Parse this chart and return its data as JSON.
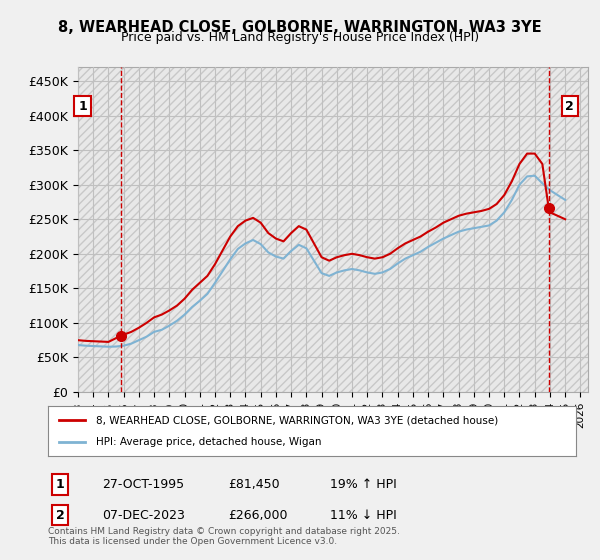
{
  "title": "8, WEARHEAD CLOSE, GOLBORNE, WARRINGTON, WA3 3YE",
  "subtitle": "Price paid vs. HM Land Registry's House Price Index (HPI)",
  "ylabel_ticks": [
    "£0",
    "£50K",
    "£100K",
    "£150K",
    "£200K",
    "£250K",
    "£300K",
    "£350K",
    "£400K",
    "£450K"
  ],
  "ytick_vals": [
    0,
    50000,
    100000,
    150000,
    200000,
    250000,
    300000,
    350000,
    400000,
    450000
  ],
  "ylim": [
    0,
    470000
  ],
  "xlim_start": 1993.0,
  "xlim_end": 2026.5,
  "background_color": "#f0f0f0",
  "plot_bg_color": "#ffffff",
  "hatch_color": "#d0d0d0",
  "grid_color": "#c0c0c0",
  "red_line_color": "#cc0000",
  "blue_line_color": "#7fb3d3",
  "dashed_red_color": "#cc0000",
  "point1_x": 1995.82,
  "point1_y": 81450,
  "point2_x": 2023.92,
  "point2_y": 266000,
  "annotation1": "1",
  "annotation2": "2",
  "legend_label1": "8, WEARHEAD CLOSE, GOLBORNE, WARRINGTON, WA3 3YE (detached house)",
  "legend_label2": "HPI: Average price, detached house, Wigan",
  "table_row1": [
    "1",
    "27-OCT-1995",
    "£81,450",
    "19% ↑ HPI"
  ],
  "table_row2": [
    "2",
    "07-DEC-2023",
    "£266,000",
    "11% ↓ HPI"
  ],
  "footer": "Contains HM Land Registry data © Crown copyright and database right 2025.\nThis data is licensed under the Open Government Licence v3.0.",
  "red_line_x": [
    1993.0,
    1993.5,
    1994.0,
    1994.5,
    1995.0,
    1995.82,
    1996.0,
    1996.5,
    1997.0,
    1997.5,
    1998.0,
    1998.5,
    1999.0,
    1999.5,
    2000.0,
    2000.5,
    2001.0,
    2001.5,
    2002.0,
    2002.5,
    2003.0,
    2003.5,
    2004.0,
    2004.5,
    2005.0,
    2005.5,
    2006.0,
    2006.5,
    2007.0,
    2007.5,
    2008.0,
    2008.5,
    2009.0,
    2009.5,
    2010.0,
    2010.5,
    2011.0,
    2011.5,
    2012.0,
    2012.5,
    2013.0,
    2013.5,
    2014.0,
    2014.5,
    2015.0,
    2015.5,
    2016.0,
    2016.5,
    2017.0,
    2017.5,
    2018.0,
    2018.5,
    2019.0,
    2019.5,
    2020.0,
    2020.5,
    2021.0,
    2021.5,
    2022.0,
    2022.5,
    2023.0,
    2023.5,
    2023.92,
    2024.0,
    2024.5,
    2025.0
  ],
  "red_line_y": [
    75000,
    74000,
    73500,
    73000,
    72500,
    81450,
    83000,
    87000,
    93000,
    100000,
    108000,
    112000,
    118000,
    125000,
    135000,
    148000,
    158000,
    168000,
    185000,
    205000,
    225000,
    240000,
    248000,
    252000,
    245000,
    230000,
    222000,
    218000,
    230000,
    240000,
    235000,
    215000,
    195000,
    190000,
    195000,
    198000,
    200000,
    198000,
    195000,
    193000,
    195000,
    200000,
    208000,
    215000,
    220000,
    225000,
    232000,
    238000,
    245000,
    250000,
    255000,
    258000,
    260000,
    262000,
    265000,
    272000,
    285000,
    305000,
    330000,
    345000,
    345000,
    330000,
    266000,
    260000,
    255000,
    250000
  ],
  "blue_line_x": [
    1993.0,
    1993.5,
    1994.0,
    1994.5,
    1995.0,
    1995.5,
    1996.0,
    1996.5,
    1997.0,
    1997.5,
    1998.0,
    1998.5,
    1999.0,
    1999.5,
    2000.0,
    2000.5,
    2001.0,
    2001.5,
    2002.0,
    2002.5,
    2003.0,
    2003.5,
    2004.0,
    2004.5,
    2005.0,
    2005.5,
    2006.0,
    2006.5,
    2007.0,
    2007.5,
    2008.0,
    2008.5,
    2009.0,
    2009.5,
    2010.0,
    2010.5,
    2011.0,
    2011.5,
    2012.0,
    2012.5,
    2013.0,
    2013.5,
    2014.0,
    2014.5,
    2015.0,
    2015.5,
    2016.0,
    2016.5,
    2017.0,
    2017.5,
    2018.0,
    2018.5,
    2019.0,
    2019.5,
    2020.0,
    2020.5,
    2021.0,
    2021.5,
    2022.0,
    2022.5,
    2023.0,
    2023.5,
    2024.0,
    2024.5,
    2025.0
  ],
  "blue_line_y": [
    68000,
    67000,
    66500,
    66000,
    65500,
    65800,
    67000,
    70000,
    75000,
    80000,
    87000,
    90000,
    96000,
    103000,
    112000,
    123000,
    132000,
    142000,
    158000,
    175000,
    192000,
    207000,
    215000,
    220000,
    214000,
    202000,
    196000,
    193000,
    204000,
    213000,
    208000,
    190000,
    172000,
    168000,
    173000,
    176000,
    178000,
    176000,
    173000,
    171000,
    173000,
    178000,
    186000,
    193000,
    198000,
    203000,
    210000,
    216000,
    222000,
    227000,
    232000,
    235000,
    237000,
    239000,
    241000,
    248000,
    260000,
    278000,
    300000,
    312000,
    313000,
    302000,
    292000,
    285000,
    278000
  ]
}
